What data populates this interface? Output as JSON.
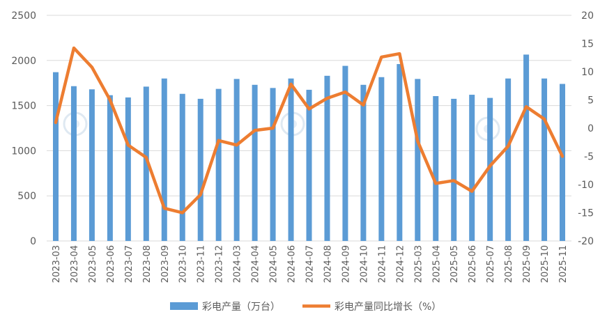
{
  "chart_data": {
    "type": "bar+line",
    "categories": [
      "2023-03",
      "2023-04",
      "2023-05",
      "2023-06",
      "2023-07",
      "2023-08",
      "2023-09",
      "2023-10",
      "2023-11",
      "2023-12",
      "2024-03",
      "2024-04",
      "2024-05",
      "2024-06",
      "2024-07",
      "2024-08",
      "2024-09",
      "2024-10",
      "2024-11",
      "2024-12",
      "2025-03",
      "2025-04",
      "2025-05",
      "2025-06",
      "2025-07",
      "2025-08",
      "2025-09",
      "2025-10",
      "2025-11"
    ],
    "series": [
      {
        "name": "彩电产量（万台）",
        "type": "bar",
        "axis": "left",
        "color": "#5B9BD5",
        "values": [
          1870,
          1715,
          1680,
          1615,
          1590,
          1710,
          1800,
          1630,
          1575,
          1685,
          1795,
          1730,
          1695,
          1800,
          1675,
          1830,
          1940,
          1730,
          1815,
          1960,
          1795,
          1605,
          1575,
          1620,
          1585,
          1800,
          2065,
          1800,
          1740
        ]
      },
      {
        "name": "彩电产量同比增长（%）",
        "type": "line",
        "axis": "right",
        "color": "#ED7D31",
        "values": [
          1.0,
          14.2,
          10.8,
          5.0,
          -3.0,
          -5.2,
          -14.2,
          -15.0,
          -11.8,
          -2.2,
          -3.0,
          -0.4,
          0.0,
          7.8,
          3.4,
          5.3,
          6.4,
          4.1,
          12.6,
          13.2,
          -2.3,
          -9.8,
          -9.3,
          -11.2,
          -6.7,
          -3.2,
          3.8,
          1.6,
          -5.0
        ]
      }
    ],
    "y_left": {
      "min": 0,
      "max": 2500,
      "ticks": [
        "0",
        "500",
        "1000",
        "1500",
        "2000",
        "2500"
      ]
    },
    "y_right": {
      "min": -20,
      "max": 20,
      "ticks": [
        "-20",
        "-15",
        "-10",
        "-5",
        "0",
        "5",
        "10",
        "15",
        "20"
      ]
    },
    "legend": [
      {
        "label": "彩电产量（万台）",
        "kind": "bar",
        "color": "#5B9BD5"
      },
      {
        "label": "彩电产量同比增长（%）",
        "kind": "line",
        "color": "#ED7D31"
      }
    ],
    "legend_position": "bottom",
    "gridlines": true,
    "title": ""
  }
}
